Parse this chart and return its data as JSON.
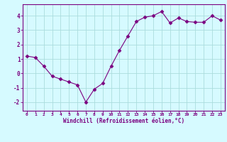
{
  "x": [
    0,
    1,
    2,
    3,
    4,
    5,
    6,
    7,
    8,
    9,
    10,
    11,
    12,
    13,
    14,
    15,
    16,
    17,
    18,
    19,
    20,
    21,
    22,
    23
  ],
  "y": [
    1.2,
    1.1,
    0.5,
    -0.2,
    -0.4,
    -0.6,
    -0.8,
    -2.0,
    -1.1,
    -0.7,
    0.5,
    1.6,
    2.6,
    3.6,
    3.9,
    4.0,
    4.3,
    3.5,
    3.85,
    3.6,
    3.55,
    3.55,
    4.0,
    3.7
  ],
  "line_color": "#7B0080",
  "marker": "D",
  "marker_size": 2.5,
  "bg_color": "#d6faff",
  "grid_color": "#aadddd",
  "xlabel": "Windchill (Refroidissement éolien,°C)",
  "xlabel_color": "#7B0080",
  "tick_color": "#7B0080",
  "spine_color": "#7B0080",
  "ylim": [
    -2.6,
    4.8
  ],
  "xlim": [
    -0.5,
    23.5
  ],
  "yticks": [
    -2,
    -1,
    0,
    1,
    2,
    3,
    4
  ],
  "xticks": [
    0,
    1,
    2,
    3,
    4,
    5,
    6,
    7,
    8,
    9,
    10,
    11,
    12,
    13,
    14,
    15,
    16,
    17,
    18,
    19,
    20,
    21,
    22,
    23
  ]
}
